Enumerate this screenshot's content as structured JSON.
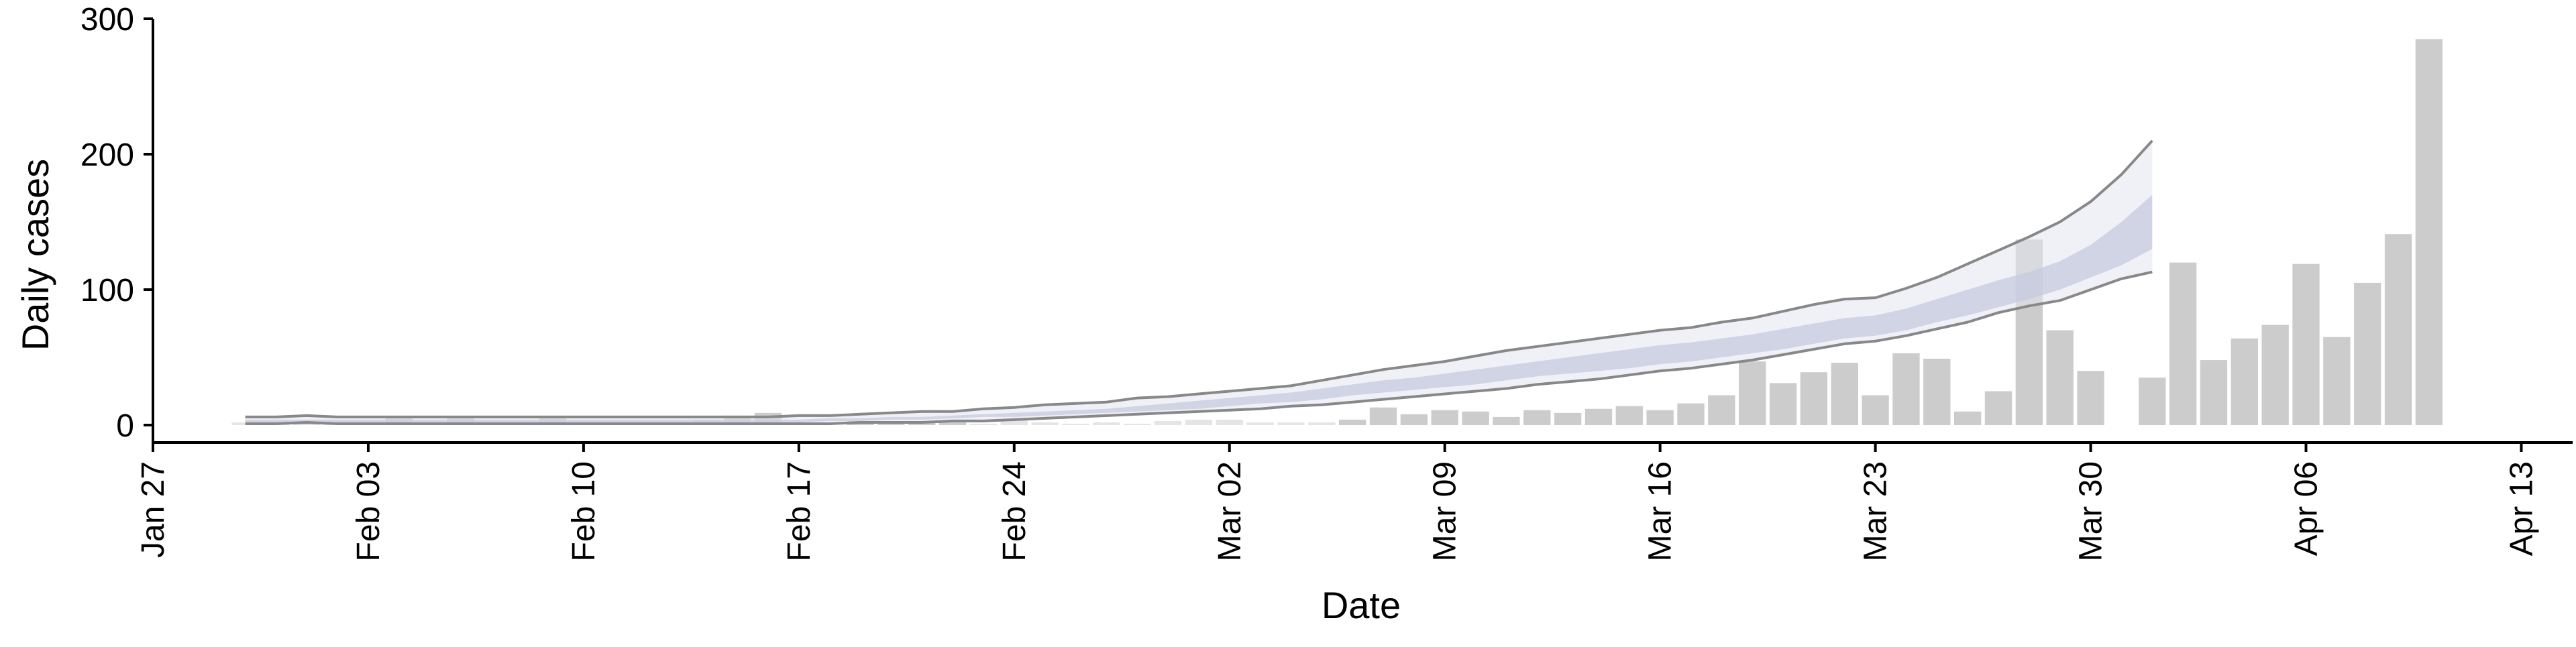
{
  "chart_data": {
    "type": "bar",
    "xlabel": "Date",
    "ylabel": "Daily cases",
    "x_tick_labels": [
      "Jan 27",
      "Feb 03",
      "Feb 10",
      "Feb 17",
      "Feb 24",
      "Mar 02",
      "Mar 09",
      "Mar 16",
      "Mar 23",
      "Mar 30",
      "Apr 06",
      "Apr 13"
    ],
    "y_tick_labels": [
      "0",
      "100",
      "200",
      "300"
    ],
    "ylim": [
      -12,
      300
    ],
    "x_start_date": "Jan 27",
    "x_range_days": [
      0,
      77
    ],
    "grid": false,
    "colors": {
      "bars": "#cccccc",
      "bars_light": "#e5e5e5",
      "band_outer": "#e3e5ee",
      "band_inner": "#c5cadf",
      "bound_lines": "#888888"
    },
    "bars": {
      "dates": [
        "Jan 30",
        "Jan 31",
        "Feb 01",
        "Feb 02",
        "Feb 03",
        "Feb 04",
        "Feb 05",
        "Feb 06",
        "Feb 07",
        "Feb 08",
        "Feb 09",
        "Feb 10",
        "Feb 11",
        "Feb 12",
        "Feb 13",
        "Feb 14",
        "Feb 15",
        "Feb 16",
        "Feb 17",
        "Feb 18",
        "Feb 19",
        "Feb 20",
        "Feb 21",
        "Feb 22",
        "Feb 23",
        "Feb 24",
        "Feb 25",
        "Feb 26",
        "Feb 27",
        "Feb 28",
        "Feb 29",
        "Mar 01",
        "Mar 02",
        "Mar 03",
        "Mar 04",
        "Mar 05",
        "Mar 06",
        "Mar 07",
        "Mar 08",
        "Mar 09",
        "Mar 10",
        "Mar 11",
        "Mar 12",
        "Mar 13",
        "Mar 14",
        "Mar 15",
        "Mar 16",
        "Mar 17",
        "Mar 18",
        "Mar 19",
        "Mar 20",
        "Mar 21",
        "Mar 22",
        "Mar 23",
        "Mar 24",
        "Mar 25",
        "Mar 26",
        "Mar 27",
        "Mar 28",
        "Mar 29",
        "Mar 30",
        "Mar 31",
        "Apr 01",
        "Apr 02",
        "Apr 03",
        "Apr 04",
        "Apr 05",
        "Apr 06",
        "Apr 07",
        "Apr 08",
        "Apr 09",
        "Apr 10"
      ],
      "values": [
        2,
        1,
        1,
        1,
        1,
        5,
        2,
        5,
        0,
        0,
        6,
        0,
        0,
        0,
        0,
        4,
        7,
        9,
        0,
        0,
        3,
        2,
        2,
        2,
        1,
        4,
        2,
        1,
        2,
        1,
        3,
        4,
        4,
        2,
        2,
        2,
        4,
        13,
        8,
        11,
        10,
        6,
        11,
        9,
        12,
        14,
        11,
        16,
        22,
        47,
        31,
        39,
        46,
        22,
        53,
        49,
        10,
        25,
        137,
        70,
        40,
        0,
        35,
        120,
        48,
        64,
        74,
        119,
        65,
        105,
        141,
        285
      ],
      "light": [
        true,
        true,
        true,
        true,
        true,
        false,
        false,
        false,
        false,
        false,
        false,
        false,
        false,
        false,
        false,
        false,
        false,
        false,
        false,
        false,
        false,
        false,
        false,
        false,
        true,
        true,
        true,
        true,
        true,
        true,
        true,
        true,
        true,
        true,
        true,
        true,
        false,
        false,
        false,
        false,
        false,
        false,
        false,
        false,
        false,
        false,
        false,
        false,
        false,
        false,
        false,
        false,
        false,
        false,
        false,
        false,
        false,
        false,
        false,
        false,
        false,
        false,
        false,
        false,
        false,
        false,
        false,
        false,
        false,
        false,
        false,
        false
      ]
    },
    "forecast": {
      "dates": [
        "Jan 30",
        "Jan 31",
        "Feb 01",
        "Feb 02",
        "Feb 03",
        "Feb 04",
        "Feb 05",
        "Feb 06",
        "Feb 07",
        "Feb 08",
        "Feb 09",
        "Feb 10",
        "Feb 11",
        "Feb 12",
        "Feb 13",
        "Feb 14",
        "Feb 15",
        "Feb 16",
        "Feb 17",
        "Feb 18",
        "Feb 19",
        "Feb 20",
        "Feb 21",
        "Feb 22",
        "Feb 23",
        "Feb 24",
        "Feb 25",
        "Feb 26",
        "Feb 27",
        "Feb 28",
        "Feb 29",
        "Mar 01",
        "Mar 02",
        "Mar 03",
        "Mar 04",
        "Mar 05",
        "Mar 06",
        "Mar 07",
        "Mar 08",
        "Mar 09",
        "Mar 10",
        "Mar 11",
        "Mar 12",
        "Mar 13",
        "Mar 14",
        "Mar 15",
        "Mar 16",
        "Mar 17",
        "Mar 18",
        "Mar 19",
        "Mar 20",
        "Mar 21",
        "Mar 22",
        "Mar 23",
        "Mar 24",
        "Mar 25",
        "Mar 26",
        "Mar 27",
        "Mar 28",
        "Mar 29",
        "Mar 30",
        "Mar 31",
        "Apr 01"
      ],
      "upper_outer": [
        6,
        6,
        7,
        6,
        6,
        6,
        6,
        6,
        6,
        6,
        6,
        6,
        6,
        6,
        6,
        6,
        6,
        6,
        7,
        7,
        8,
        9,
        10,
        10,
        12,
        13,
        15,
        16,
        17,
        20,
        21,
        23,
        25,
        27,
        29,
        33,
        37,
        41,
        44,
        47,
        51,
        55,
        58,
        61,
        64,
        67,
        70,
        72,
        76,
        79,
        84,
        89,
        93,
        94,
        101,
        109,
        119,
        129,
        139,
        150,
        165,
        185,
        210
      ],
      "upper_inner": [
        4,
        4,
        4,
        4,
        4,
        4,
        4,
        4,
        4,
        4,
        4,
        4,
        4,
        4,
        4,
        4,
        4,
        4,
        4,
        5,
        5,
        6,
        6,
        7,
        8,
        9,
        10,
        11,
        12,
        14,
        16,
        18,
        20,
        22,
        24,
        27,
        30,
        33,
        35,
        38,
        41,
        44,
        47,
        50,
        53,
        56,
        59,
        61,
        64,
        67,
        71,
        75,
        79,
        81,
        86,
        93,
        100,
        107,
        113,
        121,
        133,
        150,
        170
      ],
      "lower_inner": [
        2,
        2,
        2,
        2,
        2,
        2,
        2,
        2,
        2,
        2,
        2,
        2,
        2,
        2,
        2,
        2,
        2,
        2,
        2,
        3,
        3,
        4,
        4,
        5,
        6,
        6,
        7,
        8,
        9,
        10,
        11,
        12,
        14,
        16,
        17,
        19,
        22,
        24,
        26,
        28,
        30,
        33,
        36,
        38,
        40,
        42,
        45,
        47,
        50,
        53,
        56,
        60,
        64,
        66,
        70,
        76,
        81,
        87,
        93,
        100,
        109,
        118,
        130
      ],
      "lower_outer": [
        1,
        1,
        2,
        1,
        1,
        1,
        1,
        1,
        1,
        1,
        1,
        1,
        1,
        1,
        1,
        1,
        1,
        1,
        1,
        1,
        2,
        2,
        2,
        3,
        3,
        4,
        5,
        6,
        7,
        8,
        9,
        10,
        11,
        12,
        14,
        15,
        17,
        19,
        21,
        23,
        25,
        27,
        30,
        32,
        34,
        37,
        40,
        42,
        45,
        48,
        52,
        56,
        60,
        62,
        66,
        71,
        76,
        83,
        88,
        92,
        100,
        108,
        113
      ]
    }
  }
}
